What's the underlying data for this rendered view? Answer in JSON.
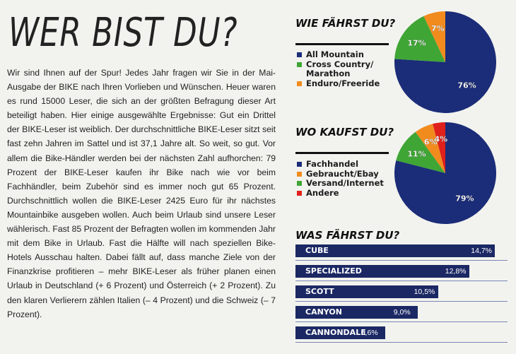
{
  "article": {
    "title": "WER BIST DU?",
    "body": "Wir sind Ihnen auf der Spur! Jedes Jahr fragen wir Sie in der Mai-Ausgabe der BIKE nach Ihren Vorlieben und Wünschen. Heuer waren es rund 15000 Leser, die sich an der größten Befragung dieser Art beteiligt haben. Hier einige ausgewählte Ergebnisse: Gut ein Drittel der BIKE-Leser ist weiblich. Der durchschnittliche BIKE-Leser sitzt seit fast zehn Jahren im Sattel und ist 37,1 Jahre alt. So weit, so gut. Vor allem die Bike-Händler werden bei der nächsten Zahl aufhorchen: 79 Prozent der BIKE-Leser kaufen ihr Bike nach wie vor beim Fachhändler, beim Zubehör sind es immer noch gut 65 Prozent. Durchschnittlich wollen die BIKE-Leser 2425 Euro für ihr nächstes Mountainbike ausgeben wollen. Auch beim Urlaub sind unsere Leser wählerisch. Fast 85 Prozent der Befragten wollen im kommenden Jahr mit dem Bike in Urlaub. Fast die Hälfte will nach speziellen Bike-Hotels Ausschau halten. Dabei fällt auf, dass manche Ziele von der Finanzkrise profitieren – mehr BIKE-Leser als früher planen einen Urlaub in Deutschland (+ 6 Prozent) und Österreich (+ 2 Prozent). Zu den klaren Verlierern zählen Italien (– 4 Prozent) und die Schweiz (– 7 Prozent)."
  },
  "colors": {
    "blue": "#1b2c78",
    "green": "#3fa535",
    "orange": "#f28b1e",
    "red": "#e0201b",
    "bar": "#1b2864"
  },
  "chart_data": [
    {
      "type": "pie",
      "title": "WIE FÄHRST DU?",
      "categories": [
        "All Mountain",
        "Cross Country/ Marathon",
        "Enduro/Freeride"
      ],
      "values": [
        76,
        17,
        7
      ],
      "labels": [
        "76%",
        "17%",
        "7%"
      ],
      "colors": [
        "#1b2c78",
        "#3fa535",
        "#f28b1e"
      ]
    },
    {
      "type": "pie",
      "title": "WO KAUFST DU?",
      "categories": [
        "Fachhandel",
        "Gebraucht/Ebay",
        "Versand/Internet",
        "Andere"
      ],
      "values": [
        79,
        6,
        11,
        4
      ],
      "labels": [
        "79%",
        "6%",
        "11%",
        "4%"
      ],
      "colors": [
        "#1b2c78",
        "#f28b1e",
        "#3fa535",
        "#e0201b"
      ]
    },
    {
      "type": "bar",
      "title": "WAS FÄHRST DU?",
      "categories": [
        "CUBE",
        "SPECIALIZED",
        "SCOTT",
        "CANYON",
        "CANNONDALE"
      ],
      "values": [
        14.7,
        12.8,
        10.5,
        9.0,
        6.6
      ],
      "value_labels": [
        "14,7%",
        "12,8%",
        "10,5%",
        "9,0%",
        "6,6%"
      ],
      "xlim": [
        0,
        15
      ]
    }
  ]
}
